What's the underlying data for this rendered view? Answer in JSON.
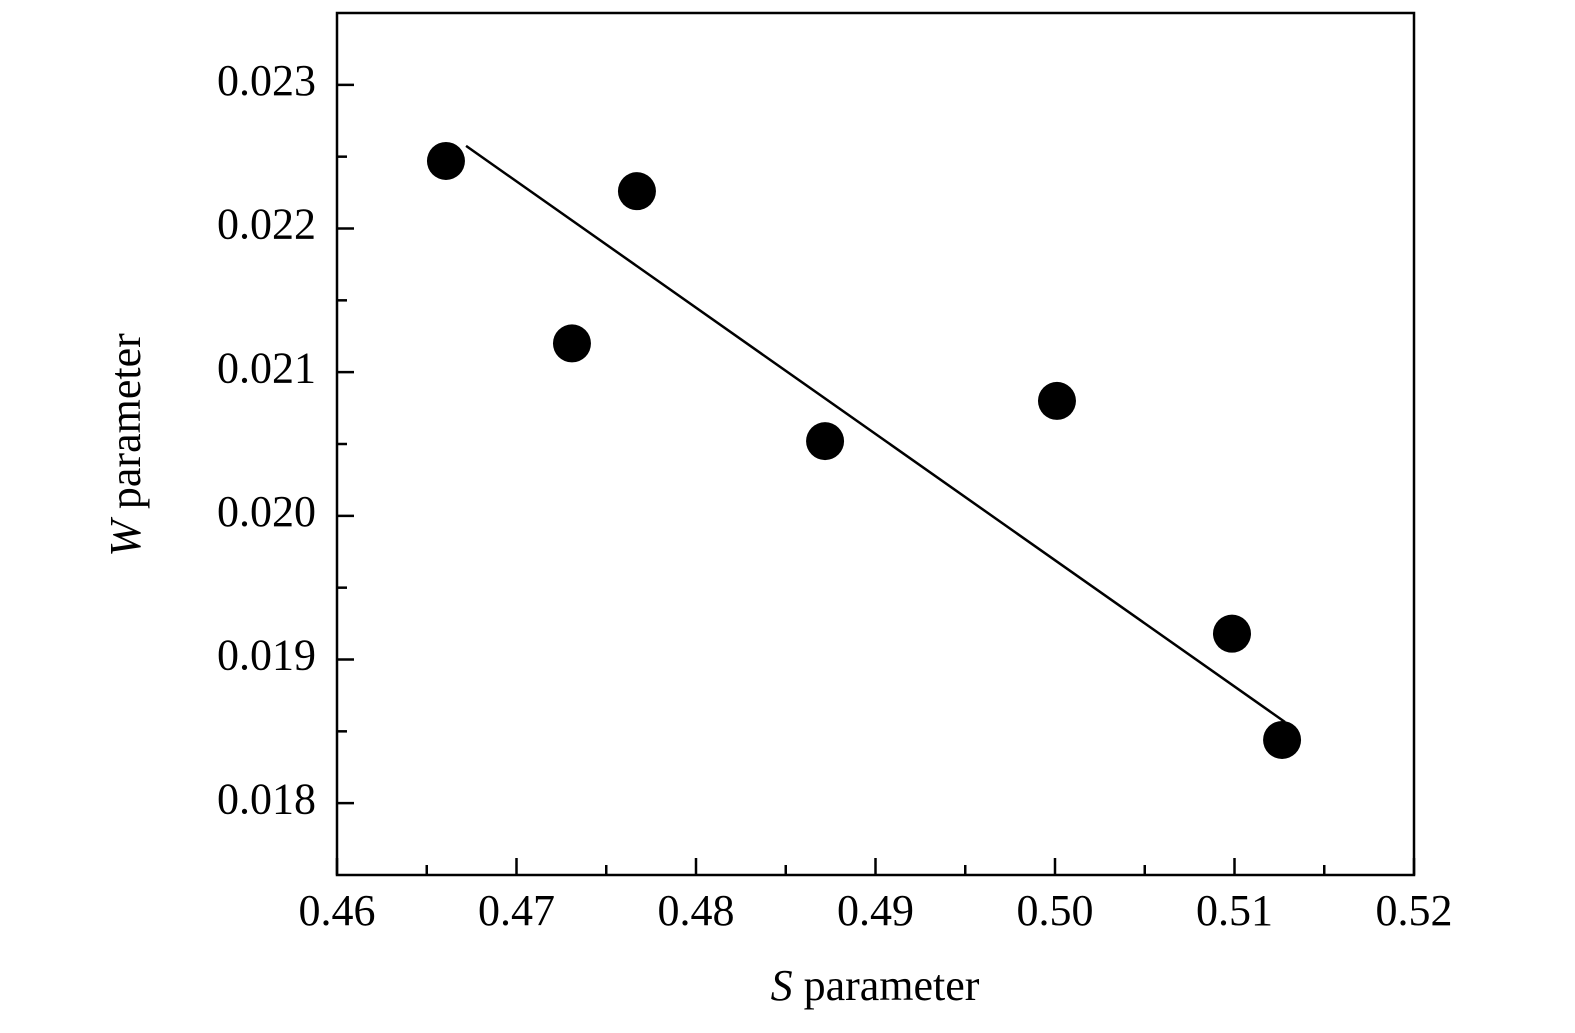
{
  "chart_data": {
    "type": "scatter",
    "x_label": "S parameter",
    "y_label": "W parameter",
    "xlim": [
      0.46,
      0.52
    ],
    "xticks": [
      0.46,
      0.47,
      0.48,
      0.49,
      {
        "value": 0.5,
        "label": "0.50"
      },
      0.51,
      0.52
    ],
    "ylim": [
      0.0175,
      0.0235
    ],
    "yticks": [
      0.018,
      0.019,
      {
        "value": 0.02,
        "label": "0.020"
      },
      0.021,
      0.022,
      0.023
    ],
    "series": [
      {
        "mode": "markers",
        "color": "#000000",
        "x": [
          0.46607,
          0.47309,
          0.47671,
          0.48719,
          0.50011,
          0.50986,
          0.51265
        ],
        "values": [
          0.02247,
          0.0212,
          0.02226,
          0.02052,
          0.0208,
          0.01918,
          0.01844
        ]
      },
      {
        "mode": "line",
        "color": "#000000",
        "x": [
          0.46719,
          0.51281
        ],
        "values": [
          0.022575,
          0.018565
        ]
      }
    ]
  }
}
